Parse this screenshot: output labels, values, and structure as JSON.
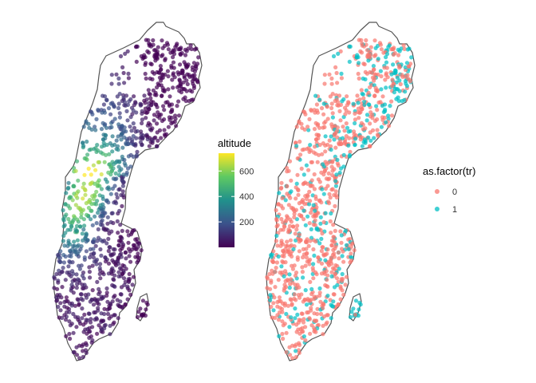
{
  "chart_data": [
    {
      "type": "scatter",
      "title": "",
      "xlabel": "",
      "ylabel": "",
      "grid": false,
      "legend": {
        "title": "altitude",
        "kind": "colorbar",
        "placement": "right",
        "ticks": [
          200,
          400,
          600
        ],
        "range": [
          0,
          740
        ],
        "palette": [
          "#440154",
          "#3b528b",
          "#21918c",
          "#5ec962",
          "#fde725"
        ]
      },
      "color_variable": "altitude"
    },
    {
      "type": "scatter",
      "title": "",
      "xlabel": "",
      "ylabel": "",
      "grid": false,
      "legend": {
        "title": "as.factor(tr)",
        "kind": "discrete",
        "placement": "right",
        "entries": [
          {
            "label": "0",
            "color": "#F8766D"
          },
          {
            "label": "1",
            "color": "#00BFC4"
          }
        ]
      },
      "color_variable": "as.factor(tr)"
    }
  ]
}
